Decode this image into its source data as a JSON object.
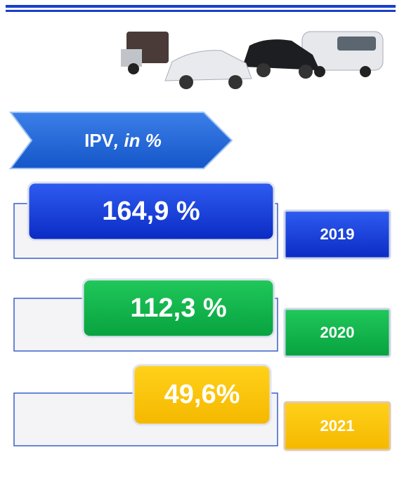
{
  "banner": {
    "title": "IPV",
    "subtitle": ", in %"
  },
  "items": [
    {
      "value": "164,9 %",
      "year": "2019"
    },
    {
      "value": "112,3 %",
      "year": "2020"
    },
    {
      "value": "49,6%",
      "year": "2021"
    }
  ]
}
